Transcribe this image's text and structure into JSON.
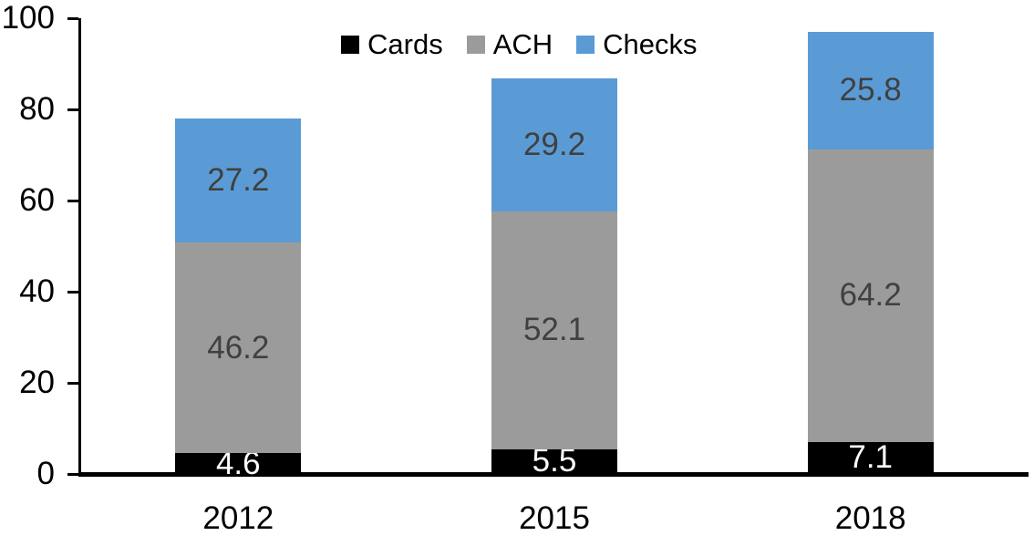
{
  "chart_data": {
    "type": "bar",
    "stacked": true,
    "title": "",
    "xlabel": "",
    "ylabel": "",
    "categories": [
      "2012",
      "2015",
      "2018"
    ],
    "series": [
      {
        "name": "Cards",
        "color": "#000000",
        "label_color": "#FFFFFF",
        "values": [
          4.6,
          5.5,
          7.1
        ]
      },
      {
        "name": "ACH",
        "color": "#9B9B9B",
        "label_color": "#404040",
        "values": [
          46.2,
          52.1,
          64.2
        ]
      },
      {
        "name": "Checks",
        "color": "#5B9BD5",
        "label_color": "#404040",
        "values": [
          27.2,
          29.2,
          25.8
        ]
      }
    ],
    "totals": [
      78.0,
      86.8,
      97.1
    ],
    "ylim": [
      0,
      100
    ],
    "yticks": [
      0,
      20,
      40,
      60,
      80,
      100
    ],
    "grid": false,
    "legend_position": "top-center",
    "axis_color": "#000000",
    "background_color": "#FFFFFF"
  }
}
